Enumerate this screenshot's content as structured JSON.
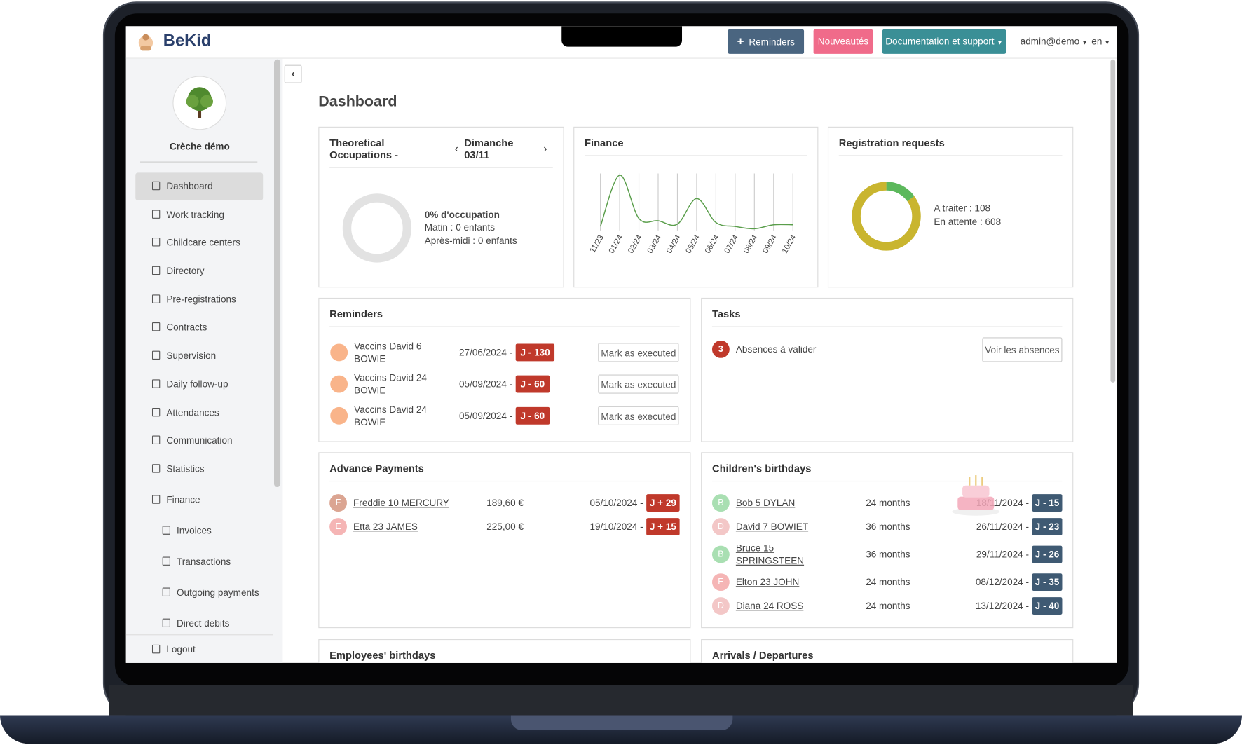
{
  "header": {
    "logo": "BeKid",
    "buttons": [
      "Reminders",
      "Nouveautés",
      "Documentation et support"
    ],
    "user": "admin@demo",
    "lang": "en"
  },
  "sidebar": {
    "center": "Crèche démo",
    "nav": [
      {
        "label": "Dashboard"
      },
      {
        "label": "Work tracking"
      },
      {
        "label": "Childcare centers"
      },
      {
        "label": "Directory"
      },
      {
        "label": "Pre-registrations"
      },
      {
        "label": "Contracts"
      },
      {
        "label": "Supervision"
      },
      {
        "label": "Daily follow-up"
      },
      {
        "label": "Attendances"
      },
      {
        "label": "Communication"
      },
      {
        "label": "Statistics"
      },
      {
        "label": "Finance",
        "children": [
          "Invoices",
          "Transactions",
          "Outgoing payments",
          "Direct debits"
        ]
      }
    ],
    "logout": "Logout"
  },
  "page_title": "Dashboard",
  "occupation": {
    "title": "Theoretical Occupations -",
    "day": "Dimanche 03/11",
    "percent": 0,
    "percent_label": "0% d'occupation",
    "lines": [
      "Matin : 0 enfants",
      "Après-midi : 0 enfants"
    ]
  },
  "finance": {
    "title": "Finance",
    "chart": {
      "type": "line",
      "categories": [
        "11/23",
        "01/24",
        "02/24",
        "03/24",
        "04/24",
        "05/24",
        "06/24",
        "07/24",
        "08/24",
        "09/24",
        "10/24"
      ],
      "values": [
        7,
        97,
        21,
        17,
        11,
        56,
        14,
        7,
        3,
        10,
        10
      ],
      "ylim": [
        0,
        100
      ],
      "color": "#5a9e4b"
    }
  },
  "registration": {
    "title": "Registration requests",
    "items": [
      {
        "label": "A traiter : 108",
        "value": 108,
        "color": "#5cb85c"
      },
      {
        "label": "En attente : 608",
        "value": 608,
        "color": "#c9b52f"
      }
    ]
  },
  "reminders": {
    "title": "Reminders",
    "action": "Mark as executed",
    "rows": [
      {
        "name": "Vaccins David 6 BOWIE",
        "date": "27/06/2024 -",
        "badge": "J - 130"
      },
      {
        "name": "Vaccins David 24 BOWIE",
        "date": "05/09/2024 -",
        "badge": "J - 60"
      },
      {
        "name": "Vaccins David 24 BOWIE",
        "date": "05/09/2024 -",
        "badge": "J - 60"
      }
    ]
  },
  "tasks": {
    "title": "Tasks",
    "rows": [
      {
        "count": 3,
        "label": "Absences à valider",
        "action": "Voir les absences"
      }
    ]
  },
  "advance_payments": {
    "title": "Advance Payments",
    "rows": [
      {
        "initial": "F",
        "color": "#dba592",
        "name": "Freddie 10 MERCURY",
        "amount": "189,60 €",
        "date": "05/10/2024 -",
        "badge": "J + 29"
      },
      {
        "initial": "E",
        "color": "#f5b5b5",
        "name": "Etta 23 JAMES",
        "amount": "225,00 €",
        "date": "19/10/2024 -",
        "badge": "J + 15"
      }
    ]
  },
  "birthdays": {
    "title": "Children's birthdays",
    "rows": [
      {
        "initial": "B",
        "color": "#a9dfb2",
        "name": "Bob 5 DYLAN",
        "age": "24 months",
        "date": "18/11/2024 -",
        "badge": "J - 15"
      },
      {
        "initial": "D",
        "color": "#f3c7c7",
        "name": "David 7 BOWIET",
        "age": "36 months",
        "date": "26/11/2024 -",
        "badge": "J - 23"
      },
      {
        "initial": "B",
        "color": "#a9dfb2",
        "name": "Bruce 15 SPRINGSTEEN",
        "age": "36 months",
        "date": "29/11/2024 -",
        "badge": "J - 26"
      },
      {
        "initial": "E",
        "color": "#f5b5b5",
        "name": "Elton 23 JOHN",
        "age": "24 months",
        "date": "08/12/2024 -",
        "badge": "J - 35"
      },
      {
        "initial": "D",
        "color": "#f3c7c7",
        "name": "Diana 24 ROSS",
        "age": "24 months",
        "date": "13/12/2024 -",
        "badge": "J - 40"
      }
    ]
  },
  "employees_birthdays": {
    "title": "Employees' birthdays"
  },
  "arrivals": {
    "title": "Arrivals / Departures"
  }
}
